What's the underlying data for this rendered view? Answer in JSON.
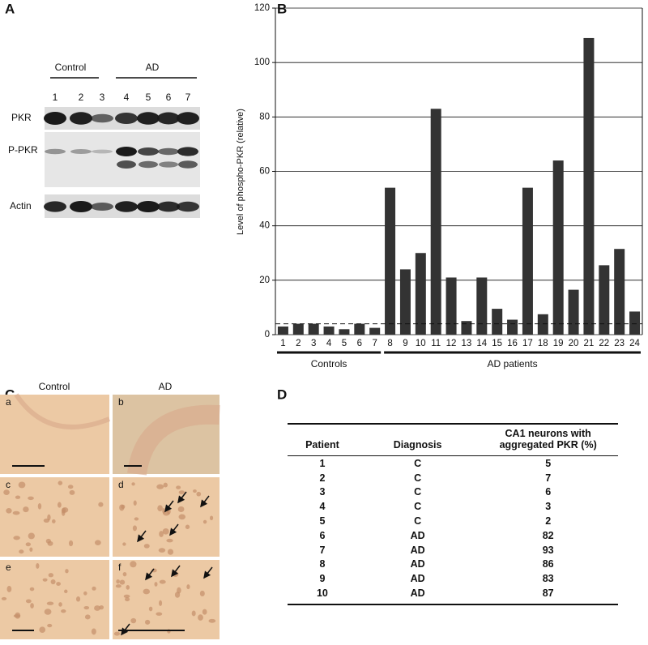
{
  "panel_a": {
    "label": "A",
    "groups": [
      "Control",
      "AD"
    ],
    "lanes": [
      "1",
      "2",
      "3",
      "4",
      "5",
      "6",
      "7"
    ],
    "rows": [
      "PKR",
      "P-PKR",
      "Actin"
    ]
  },
  "chart_data": {
    "type": "bar",
    "label": "B",
    "y_label": "Level of phospho-PKR (relative)",
    "categories": [
      "1",
      "2",
      "3",
      "4",
      "5",
      "6",
      "7",
      "8",
      "9",
      "10",
      "11",
      "12",
      "13",
      "14",
      "15",
      "16",
      "17",
      "18",
      "19",
      "20",
      "21",
      "22",
      "23",
      "24"
    ],
    "values": [
      3,
      4,
      4,
      3,
      2,
      4,
      2.5,
      54,
      24,
      30,
      83,
      21,
      5,
      21,
      9.5,
      5.5,
      54,
      7.5,
      64,
      16.5,
      109,
      25.5,
      31.5,
      8.5
    ],
    "color": "#333333",
    "ylim": [
      0,
      120
    ],
    "yticks": [
      0,
      20,
      40,
      60,
      80,
      100,
      120
    ],
    "grid": true,
    "reference_line": 4,
    "groups": [
      {
        "label": "Controls",
        "count": 7
      },
      {
        "label": "AD patients",
        "count": 17
      }
    ]
  },
  "panel_c": {
    "label": "C",
    "columns": [
      "Control",
      "AD"
    ],
    "images": [
      "a",
      "b",
      "c",
      "d",
      "e",
      "f"
    ]
  },
  "panel_d": {
    "label": "D",
    "headers": [
      "Patient",
      "Diagnosis",
      "CA1 neurons with aggregated PKR (%)"
    ],
    "rows": [
      [
        1,
        "C",
        5
      ],
      [
        2,
        "C",
        7
      ],
      [
        3,
        "C",
        6
      ],
      [
        4,
        "C",
        3
      ],
      [
        5,
        "C",
        2
      ],
      [
        6,
        "AD",
        82
      ],
      [
        7,
        "AD",
        93
      ],
      [
        8,
        "AD",
        86
      ],
      [
        9,
        "AD",
        83
      ],
      [
        10,
        "AD",
        87
      ]
    ]
  }
}
